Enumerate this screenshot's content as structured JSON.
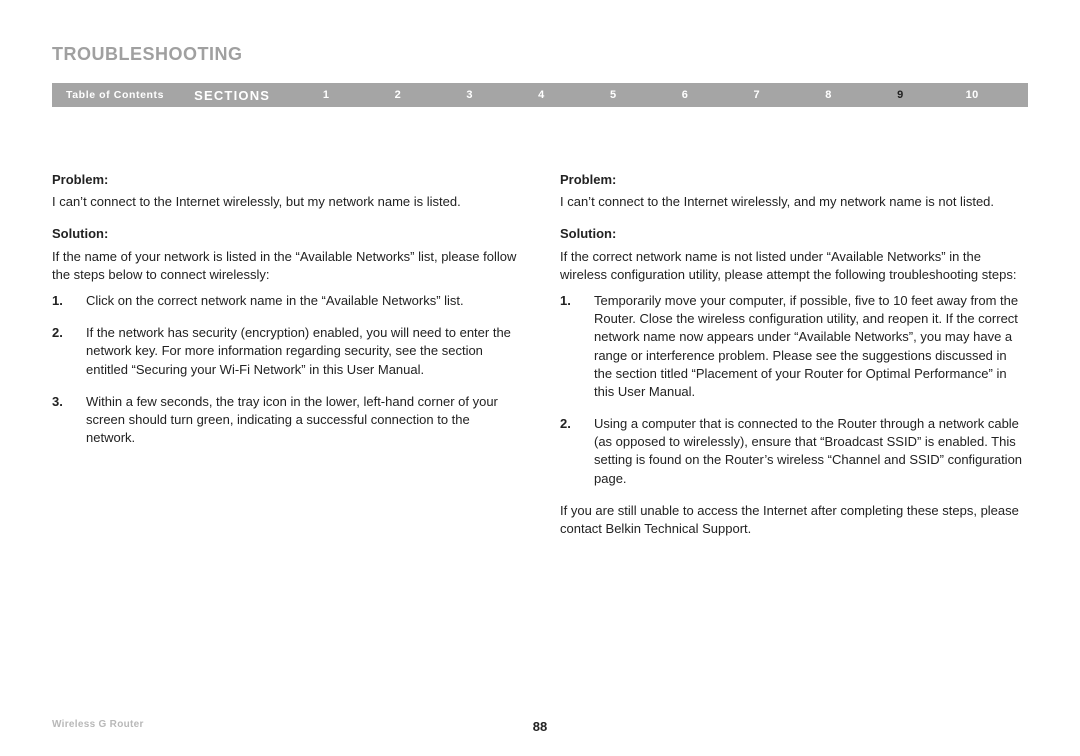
{
  "page": {
    "title": "TROUBLESHOOTING",
    "pageNumber": "88",
    "productName": "Wireless G Router"
  },
  "nav": {
    "toc": "Table of Contents",
    "sectionsLabel": "SECTIONS",
    "items": [
      "1",
      "2",
      "3",
      "4",
      "5",
      "6",
      "7",
      "8",
      "9",
      "10"
    ],
    "activeIndex": 8
  },
  "style": {
    "titleColor": "#a0a0a0",
    "navBg": "#a5a5a5",
    "navText": "#ffffff",
    "navActiveText": "#222222",
    "bodyText": "#222222",
    "footerMuted": "#b8b8b8",
    "pageBg": "#ffffff",
    "titleFontSize": 18,
    "navFontSize": 11,
    "bodyFontSize": 13,
    "footerFontSize": 10
  },
  "columns": {
    "left": {
      "problemLabel": "Problem:",
      "problemText": "I can’t connect to the Internet wirelessly, but my network name is listed.",
      "solutionLabel": "Solution:",
      "solutionIntro": "If the name of your network is listed in the “Available Networks” list, please follow the steps below to connect wirelessly:",
      "steps": [
        "Click on the correct network name in the “Available Networks” list.",
        "If the network has security (encryption) enabled, you will need to enter the network key. For more information regarding security, see the section entitled “Securing your Wi-Fi Network” in this User Manual.",
        "Within a few seconds, the tray icon in the lower, left-hand corner of your screen should turn green, indicating a successful connection to the network."
      ]
    },
    "right": {
      "problemLabel": "Problem:",
      "problemText": "I can’t connect to the Internet wirelessly, and my network name is not listed.",
      "solutionLabel": "Solution:",
      "solutionIntro": "If the correct network name is not listed under “Available Networks” in the wireless configuration utility, please attempt the following troubleshooting steps:",
      "steps": [
        "Temporarily move your computer, if possible, five to 10 feet away from the Router. Close the wireless configuration utility, and reopen it. If the correct network name now appears under “Available Networks”, you may have a range or interference problem. Please see the suggestions discussed in the section titled “Placement of your Router for Optimal Performance” in this User Manual.",
        "Using a computer that is connected to the Router through a network cable (as opposed to wirelessly), ensure that “Broadcast SSID” is enabled. This setting is found on the Router’s wireless “Channel and SSID” configuration page."
      ],
      "closingText": "If you are still unable to access the Internet after completing these steps, please contact Belkin Technical Support."
    }
  }
}
